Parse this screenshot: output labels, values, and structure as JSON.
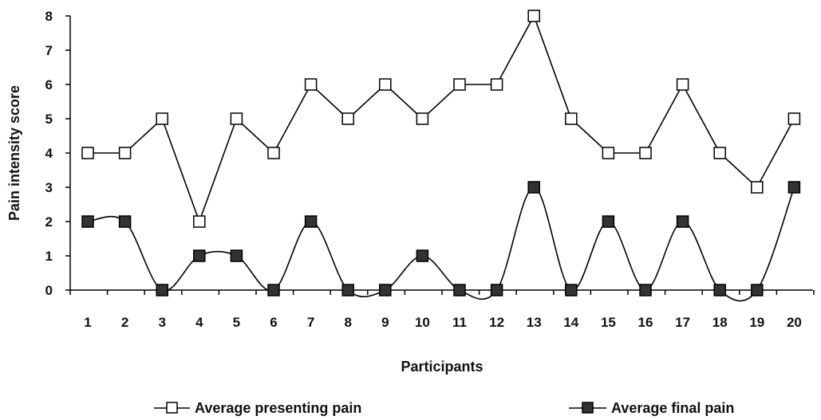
{
  "chart_data": {
    "type": "line",
    "title": "",
    "xlabel": "Participants",
    "ylabel": "Pain intensity score",
    "categories": [
      "1",
      "2",
      "3",
      "4",
      "5",
      "6",
      "7",
      "8",
      "9",
      "10",
      "11",
      "12",
      "13",
      "14",
      "15",
      "16",
      "17",
      "18",
      "19",
      "20"
    ],
    "ylim": [
      0,
      8
    ],
    "yticks": [
      "0",
      "1",
      "2",
      "3",
      "4",
      "5",
      "6",
      "7",
      "8"
    ],
    "grid": false,
    "legend_position": "bottom",
    "series": [
      {
        "name": "Average presenting pain",
        "marker": "open-square",
        "smooth": false,
        "color": "#000000",
        "values": [
          4,
          4,
          5,
          2,
          5,
          4,
          6,
          5,
          6,
          5,
          6,
          6,
          8,
          5,
          4,
          4,
          6,
          4,
          3,
          5
        ]
      },
      {
        "name": "Average final pain",
        "marker": "filled-square",
        "smooth": true,
        "color": "#000000",
        "values": [
          2,
          2,
          0,
          1,
          1,
          0,
          2,
          0,
          0,
          1,
          0,
          0,
          3,
          0,
          2,
          0,
          2,
          0,
          0,
          3
        ]
      }
    ]
  }
}
